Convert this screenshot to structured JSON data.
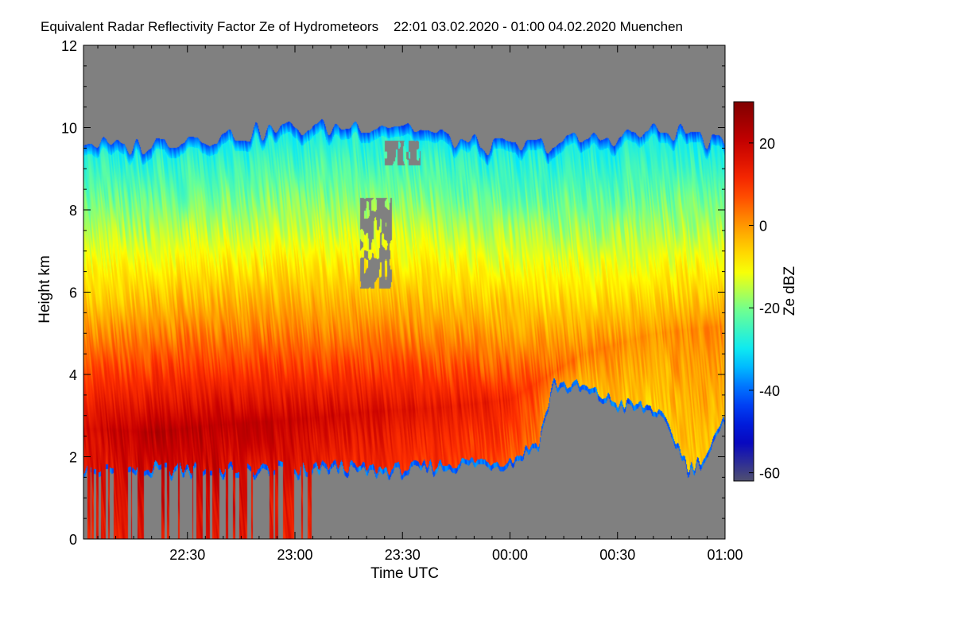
{
  "chart_data": {
    "type": "heatmap",
    "title": "Equivalent Radar Reflectivity Factor Ze of Hydrometeors    22:01 03.02.2020 - 01:00 04.02.2020 Muenchen",
    "xlabel": "Time UTC",
    "ylabel": "Height km",
    "colorbar_label": "Ze dBZ",
    "x_range_minutes_utc": [
      1321,
      1500
    ],
    "x_ticks": [
      {
        "label": "22:30",
        "value": 1350
      },
      {
        "label": "23:00",
        "value": 1380
      },
      {
        "label": "23:30",
        "value": 1410
      },
      {
        "label": "00:00",
        "value": 1440
      },
      {
        "label": "00:30",
        "value": 1470
      },
      {
        "label": "01:00",
        "value": 1500
      }
    ],
    "ylim": [
      0,
      12
    ],
    "y_ticks": [
      0,
      2,
      4,
      6,
      8,
      10,
      12
    ],
    "colorbar_range": [
      -62,
      30
    ],
    "colorbar_ticks": [
      20,
      0,
      -20,
      -40,
      -60
    ],
    "background_color": "#808080",
    "colormap": [
      "#505070",
      "#0000c8",
      "#0050ff",
      "#00e6ff",
      "#66ff99",
      "#ffff00",
      "#ffa000",
      "#ff3000",
      "#c80000",
      "#800000"
    ],
    "profile": {
      "description_hidden": "",
      "cloud_top_km": [
        [
          1321,
          9.7
        ],
        [
          1330,
          9.5
        ],
        [
          1340,
          9.6
        ],
        [
          1350,
          9.8
        ],
        [
          1360,
          9.8
        ],
        [
          1370,
          9.9
        ],
        [
          1380,
          10.0
        ],
        [
          1390,
          10.0
        ],
        [
          1400,
          10.1
        ],
        [
          1410,
          10.1
        ],
        [
          1420,
          9.8
        ],
        [
          1430,
          9.6
        ],
        [
          1440,
          9.5
        ],
        [
          1450,
          9.6
        ],
        [
          1460,
          9.7
        ],
        [
          1470,
          9.8
        ],
        [
          1480,
          9.9
        ],
        [
          1490,
          9.9
        ],
        [
          1500,
          9.5
        ]
      ],
      "cloud_base_km": [
        [
          1321,
          0.0
        ],
        [
          1350,
          0.0
        ],
        [
          1370,
          0.0
        ],
        [
          1380,
          1.5
        ],
        [
          1390,
          1.7
        ],
        [
          1400,
          1.6
        ],
        [
          1410,
          1.6
        ],
        [
          1420,
          1.7
        ],
        [
          1430,
          1.8
        ],
        [
          1440,
          1.8
        ],
        [
          1448,
          2.3
        ],
        [
          1452,
          3.7
        ],
        [
          1460,
          3.6
        ],
        [
          1470,
          3.2
        ],
        [
          1480,
          3.1
        ],
        [
          1485,
          2.5
        ],
        [
          1490,
          1.6
        ],
        [
          1495,
          2.0
        ],
        [
          1500,
          2.8
        ]
      ],
      "max_reflectivity_height_km": [
        [
          1321,
          2.7
        ],
        [
          1340,
          2.6
        ],
        [
          1360,
          2.8
        ],
        [
          1380,
          2.9
        ],
        [
          1400,
          3.1
        ],
        [
          1420,
          3.2
        ],
        [
          1440,
          3.4
        ],
        [
          1460,
          4.5
        ],
        [
          1480,
          5.0
        ],
        [
          1500,
          5.2
        ]
      ],
      "max_reflectivity_dbz": [
        [
          1321,
          18
        ],
        [
          1340,
          22
        ],
        [
          1360,
          21
        ],
        [
          1380,
          19
        ],
        [
          1400,
          17
        ],
        [
          1420,
          15
        ],
        [
          1440,
          12
        ],
        [
          1460,
          2
        ],
        [
          1480,
          0
        ],
        [
          1500,
          2
        ]
      ],
      "gap_regions": [
        {
          "t": [
            1398,
            1407
          ],
          "h": [
            6.1,
            8.3
          ]
        },
        {
          "t": [
            1405,
            1415
          ],
          "h": [
            9.1,
            9.7
          ]
        }
      ]
    }
  }
}
